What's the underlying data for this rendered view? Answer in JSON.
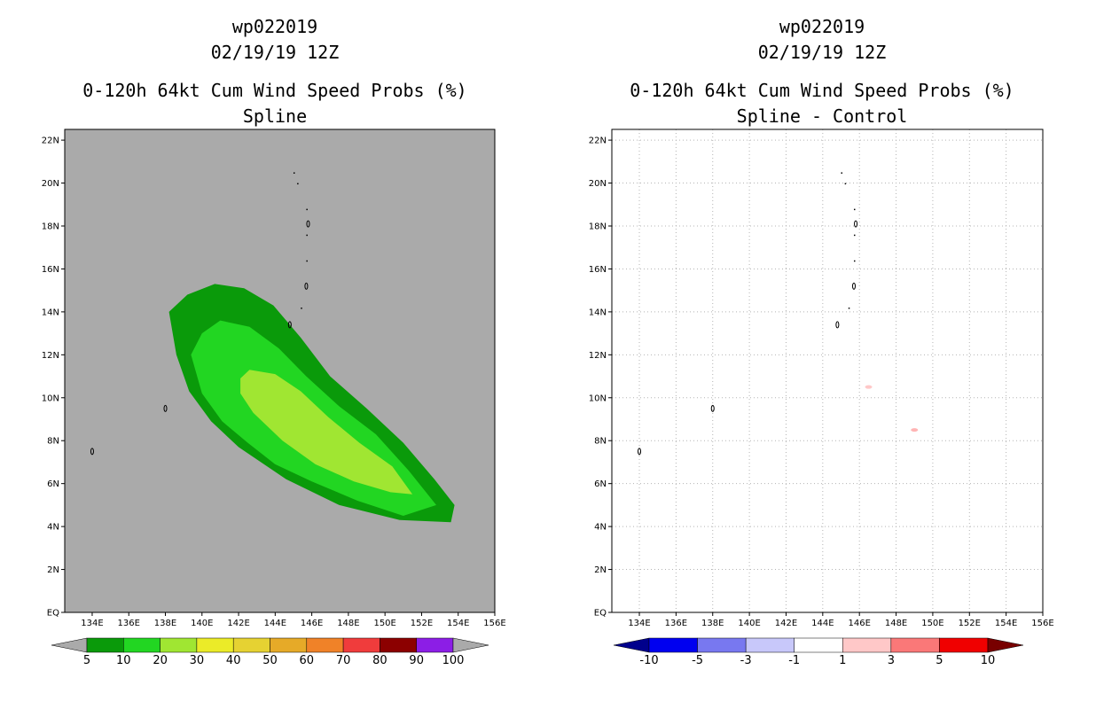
{
  "chart_data": [
    {
      "type": "heatmap",
      "storm_id": "wp022019",
      "date": "02/19/19 12Z",
      "title": "0-120h 64kt Cum Wind Speed Probs (%)",
      "subtitle": "Spline",
      "xlim": [
        132.5,
        156
      ],
      "ylim": [
        0,
        22.5
      ],
      "x_ticks": [
        "134E",
        "136E",
        "138E",
        "140E",
        "142E",
        "144E",
        "146E",
        "148E",
        "150E",
        "152E",
        "154E",
        "156E"
      ],
      "y_ticks": [
        "EQ",
        "2N",
        "4N",
        "6N",
        "8N",
        "10N",
        "12N",
        "14N",
        "16N",
        "18N",
        "20N",
        "22N"
      ],
      "background": "#aaaaaa",
      "contours": [
        {
          "level": 5,
          "color": "#0a9a0a",
          "points": [
            [
              138.2,
              14.0
            ],
            [
              139.2,
              14.8
            ],
            [
              140.7,
              15.3
            ],
            [
              142.3,
              15.1
            ],
            [
              143.9,
              14.3
            ],
            [
              145.4,
              12.8
            ],
            [
              147.0,
              11.0
            ],
            [
              149.0,
              9.5
            ],
            [
              151.0,
              7.9
            ],
            [
              152.7,
              6.2
            ],
            [
              153.8,
              5.0
            ],
            [
              153.6,
              4.2
            ],
            [
              150.8,
              4.3
            ],
            [
              147.5,
              5.0
            ],
            [
              144.6,
              6.2
            ],
            [
              142.0,
              7.7
            ],
            [
              140.5,
              8.9
            ],
            [
              139.3,
              10.3
            ],
            [
              138.6,
              12.0
            ]
          ]
        },
        {
          "level": 10,
          "color": "#22d622",
          "points": [
            [
              139.4,
              12.0
            ],
            [
              140.0,
              13.0
            ],
            [
              141.0,
              13.6
            ],
            [
              142.6,
              13.3
            ],
            [
              144.2,
              12.3
            ],
            [
              145.7,
              11.0
            ],
            [
              147.5,
              9.6
            ],
            [
              149.5,
              8.3
            ],
            [
              151.3,
              6.6
            ],
            [
              152.8,
              5.0
            ],
            [
              151.0,
              4.5
            ],
            [
              148.5,
              5.2
            ],
            [
              146.0,
              6.1
            ],
            [
              144.0,
              6.9
            ],
            [
              142.5,
              7.9
            ],
            [
              141.1,
              8.9
            ],
            [
              140.0,
              10.2
            ]
          ]
        },
        {
          "level": 20,
          "color": "#a0e632",
          "points": [
            [
              142.1,
              10.9
            ],
            [
              142.6,
              11.3
            ],
            [
              144.0,
              11.1
            ],
            [
              145.4,
              10.3
            ],
            [
              146.9,
              9.1
            ],
            [
              148.6,
              7.9
            ],
            [
              150.4,
              6.8
            ],
            [
              151.5,
              5.5
            ],
            [
              150.3,
              5.6
            ],
            [
              148.3,
              6.1
            ],
            [
              146.2,
              6.9
            ],
            [
              144.4,
              8.0
            ],
            [
              142.8,
              9.3
            ],
            [
              142.1,
              10.2
            ]
          ]
        }
      ],
      "islands": [
        [
          134.0,
          7.5
        ],
        [
          138.0,
          9.5
        ],
        [
          144.8,
          13.4
        ],
        [
          145.7,
          15.2
        ],
        [
          145.8,
          18.1
        ]
      ],
      "colorbar": {
        "labels": [
          "5",
          "10",
          "20",
          "30",
          "40",
          "50",
          "60",
          "70",
          "80",
          "90",
          "100"
        ],
        "colors": [
          "#0a9a0a",
          "#22d622",
          "#a0e632",
          "#ebeb28",
          "#e6d232",
          "#e6aa28",
          "#f08228",
          "#f03c3c",
          "#8c0000",
          "#8c1ee6"
        ],
        "under_color": "#aaaaaa",
        "over_color": "#aaaaaa"
      }
    },
    {
      "type": "heatmap",
      "storm_id": "wp022019",
      "date": "02/19/19 12Z",
      "title": "0-120h 64kt Cum Wind Speed Probs (%)",
      "subtitle": "Spline - Control",
      "xlim": [
        132.5,
        156
      ],
      "ylim": [
        0,
        22.5
      ],
      "x_ticks": [
        "134E",
        "136E",
        "138E",
        "140E",
        "142E",
        "144E",
        "146E",
        "148E",
        "150E",
        "152E",
        "154E",
        "156E"
      ],
      "y_ticks": [
        "EQ",
        "2N",
        "4N",
        "6N",
        "8N",
        "10N",
        "12N",
        "14N",
        "16N",
        "18N",
        "20N",
        "22N"
      ],
      "background": "#ffffff",
      "grid": true,
      "contours": [],
      "spots": [
        {
          "x": 146.5,
          "y": 10.5,
          "color": "#ffc8c8"
        },
        {
          "x": 149.0,
          "y": 8.5,
          "color": "#ffb4b4"
        }
      ],
      "islands": [
        [
          134.0,
          7.5
        ],
        [
          138.0,
          9.5
        ],
        [
          144.8,
          13.4
        ],
        [
          145.7,
          15.2
        ],
        [
          145.8,
          18.1
        ]
      ],
      "colorbar": {
        "labels": [
          "-10",
          "-5",
          "-3",
          "-1",
          "1",
          "3",
          "5",
          "10"
        ],
        "colors": [
          "#0000f0",
          "#7878f0",
          "#c8c8fa",
          "#ffffff",
          "#ffc8c8",
          "#fa7878",
          "#f00000"
        ],
        "under_color": "#00008c",
        "over_color": "#780000"
      }
    }
  ]
}
